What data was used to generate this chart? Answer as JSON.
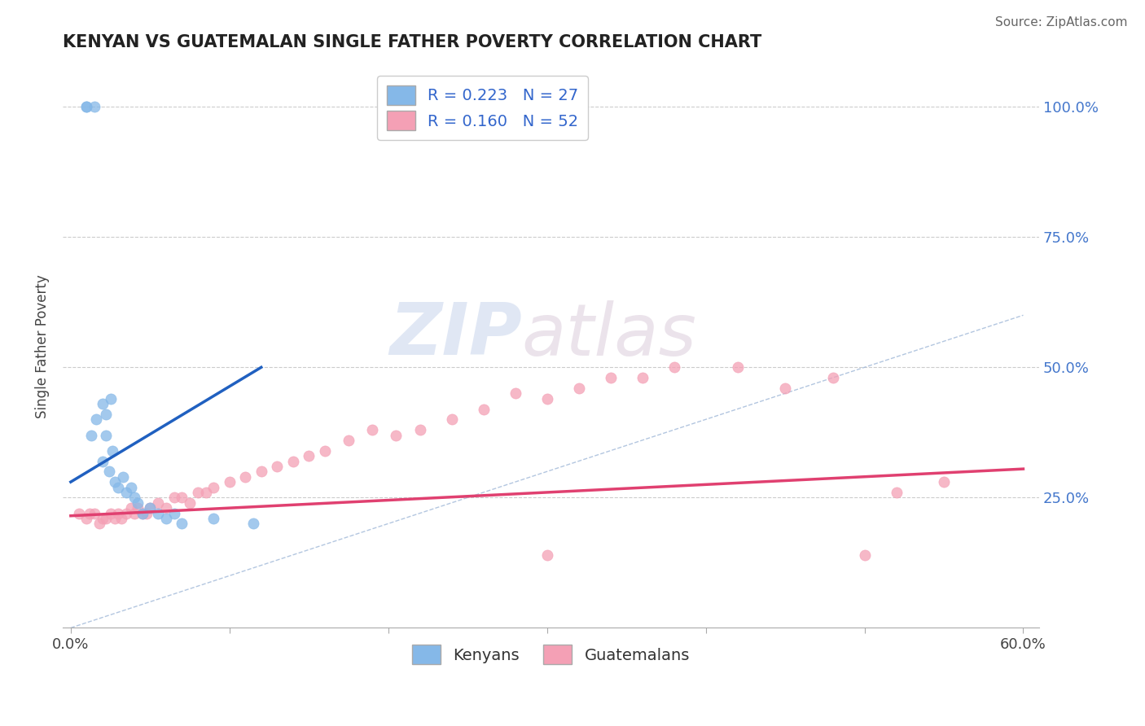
{
  "title": "KENYAN VS GUATEMALAN SINGLE FATHER POVERTY CORRELATION CHART",
  "source": "Source: ZipAtlas.com",
  "ylabel": "Single Father Poverty",
  "xlim": [
    -0.005,
    0.61
  ],
  "ylim": [
    0.0,
    1.08
  ],
  "xtick_positions": [
    0.0,
    0.1,
    0.2,
    0.3,
    0.4,
    0.5,
    0.6
  ],
  "xtick_labels": [
    "0.0%",
    "",
    "",
    "",
    "",
    "",
    "60.0%"
  ],
  "yticks_right": [
    0.25,
    0.5,
    0.75,
    1.0
  ],
  "ytick_labels_right": [
    "25.0%",
    "50.0%",
    "75.0%",
    "100.0%"
  ],
  "kenyan_color": "#85b8e8",
  "guatemalan_color": "#f4a0b5",
  "kenyan_line_color": "#2060c0",
  "guatemalan_line_color": "#e04070",
  "diagonal_color": "#a0b8d8",
  "kenyan_R": 0.223,
  "kenyan_N": 27,
  "guatemalan_R": 0.16,
  "guatemalan_N": 52,
  "legend_label_kenyan": "Kenyans",
  "legend_label_guatemalan": "Guatemalans",
  "watermark_zip": "ZIP",
  "watermark_atlas": "atlas",
  "background_color": "#ffffff",
  "kenyan_scatter_x": [
    0.01,
    0.01,
    0.015,
    0.02,
    0.022,
    0.025,
    0.013,
    0.016,
    0.022,
    0.02,
    0.024,
    0.026,
    0.028,
    0.03,
    0.033,
    0.035,
    0.038,
    0.04,
    0.042,
    0.045,
    0.05,
    0.055,
    0.06,
    0.065,
    0.07,
    0.09,
    0.115
  ],
  "kenyan_scatter_y": [
    1.0,
    1.0,
    1.0,
    0.43,
    0.41,
    0.44,
    0.37,
    0.4,
    0.37,
    0.32,
    0.3,
    0.34,
    0.28,
    0.27,
    0.29,
    0.26,
    0.27,
    0.25,
    0.24,
    0.22,
    0.23,
    0.22,
    0.21,
    0.22,
    0.2,
    0.21,
    0.2
  ],
  "guatemalan_scatter_x": [
    0.005,
    0.01,
    0.012,
    0.015,
    0.018,
    0.02,
    0.022,
    0.025,
    0.028,
    0.03,
    0.032,
    0.035,
    0.038,
    0.04,
    0.042,
    0.045,
    0.048,
    0.05,
    0.055,
    0.06,
    0.065,
    0.07,
    0.075,
    0.08,
    0.085,
    0.09,
    0.1,
    0.11,
    0.12,
    0.13,
    0.14,
    0.15,
    0.16,
    0.175,
    0.19,
    0.205,
    0.22,
    0.24,
    0.26,
    0.28,
    0.3,
    0.32,
    0.34,
    0.36,
    0.38,
    0.42,
    0.45,
    0.48,
    0.52,
    0.55,
    0.3,
    0.5
  ],
  "guatemalan_scatter_y": [
    0.22,
    0.21,
    0.22,
    0.22,
    0.2,
    0.21,
    0.21,
    0.22,
    0.21,
    0.22,
    0.21,
    0.22,
    0.23,
    0.22,
    0.23,
    0.22,
    0.22,
    0.23,
    0.24,
    0.23,
    0.25,
    0.25,
    0.24,
    0.26,
    0.26,
    0.27,
    0.28,
    0.29,
    0.3,
    0.31,
    0.32,
    0.33,
    0.34,
    0.36,
    0.38,
    0.37,
    0.38,
    0.4,
    0.42,
    0.45,
    0.44,
    0.46,
    0.48,
    0.48,
    0.5,
    0.5,
    0.46,
    0.48,
    0.26,
    0.28,
    0.14,
    0.14
  ]
}
